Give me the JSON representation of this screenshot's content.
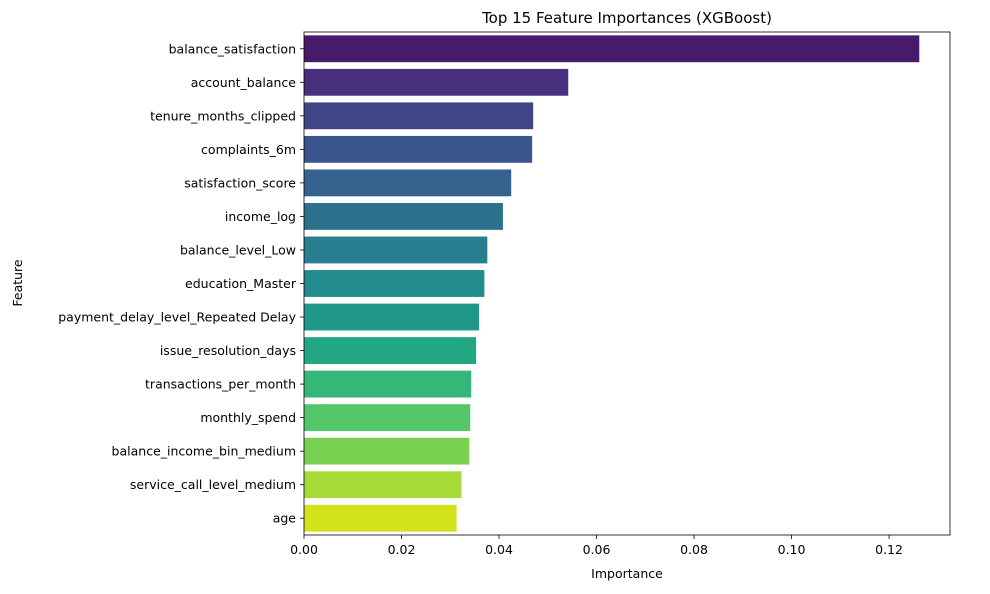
{
  "chart_data": {
    "type": "bar",
    "orientation": "horizontal",
    "title": "Top 15 Feature Importances (XGBoost)",
    "xlabel": "Importance",
    "ylabel": "Feature",
    "categories": [
      "balance_satisfaction",
      "account_balance",
      "tenure_months_clipped",
      "complaints_6m",
      "satisfaction_score",
      "income_log",
      "balance_level_Low",
      "education_Master",
      "payment_delay_level_Repeated Delay",
      "issue_resolution_days",
      "transactions_per_month",
      "monthly_spend",
      "balance_income_bin_medium",
      "service_call_level_medium",
      "age"
    ],
    "values": [
      0.1262,
      0.0542,
      0.047,
      0.0468,
      0.0425,
      0.0408,
      0.0376,
      0.037,
      0.0359,
      0.0353,
      0.0343,
      0.0341,
      0.0339,
      0.0323,
      0.0313
    ],
    "colors": [
      "#481a6c",
      "#472f7d",
      "#414487",
      "#3a548c",
      "#34618d",
      "#2d708e",
      "#287d8e",
      "#228b8d",
      "#1f988b",
      "#22a785",
      "#35b779",
      "#54c568",
      "#7ad151",
      "#a5db36",
      "#d2e21b"
    ],
    "xlim": [
      0,
      0.1325
    ],
    "xticks": [
      0.0,
      0.02,
      0.04,
      0.06,
      0.08,
      0.1,
      0.12
    ],
    "xtick_labels": [
      "0.00",
      "0.02",
      "0.04",
      "0.06",
      "0.08",
      "0.10",
      "0.12"
    ],
    "grid": false,
    "legend": "none"
  }
}
